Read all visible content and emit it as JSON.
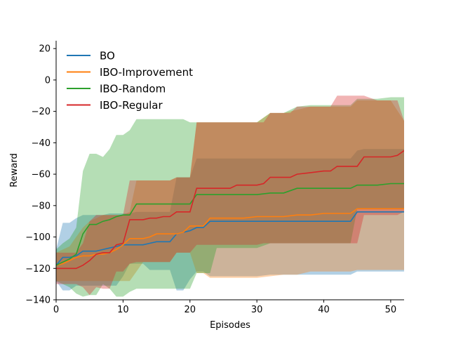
{
  "chart_data": {
    "type": "line",
    "title": "",
    "xlabel": "Episodes",
    "ylabel": "Reward",
    "xlim": [
      0,
      52
    ],
    "ylim": [
      -140,
      25
    ],
    "xticks": [
      0,
      10,
      20,
      30,
      40,
      50
    ],
    "yticks": [
      -140,
      -120,
      -100,
      -80,
      -60,
      -40,
      -20,
      0,
      20
    ],
    "grid": false,
    "legend_position": "top-left",
    "series": [
      {
        "name": "BO",
        "color": "#1f77b4",
        "x": [
          0,
          1,
          2,
          3,
          4,
          5,
          6,
          7,
          8,
          9,
          10,
          11,
          12,
          13,
          14,
          15,
          16,
          17,
          18,
          19,
          20,
          21,
          22,
          23,
          24,
          26,
          28,
          30,
          32,
          34,
          36,
          38,
          40,
          42,
          44,
          45,
          46,
          48,
          50,
          52
        ],
        "mean": [
          -118,
          -113,
          -113,
          -112,
          -109,
          -109,
          -109,
          -108,
          -107,
          -106,
          -105,
          -105,
          -105,
          -105,
          -104,
          -103,
          -103,
          -103,
          -98,
          -97,
          -96,
          -94,
          -94,
          -90,
          -90,
          -90,
          -90,
          -90,
          -90,
          -90,
          -90,
          -90,
          -90,
          -90,
          -90,
          -84,
          -84,
          -84,
          -84,
          -84
        ],
        "upper": [
          -108,
          -91,
          -91,
          -88,
          -86,
          -86,
          -86,
          -86,
          -85,
          -85,
          -85,
          -85,
          -84,
          -84,
          -84,
          -84,
          -84,
          -84,
          -62,
          -62,
          -62,
          -50,
          -50,
          -50,
          -50,
          -50,
          -50,
          -50,
          -50,
          -50,
          -50,
          -50,
          -50,
          -50,
          -50,
          -45,
          -44,
          -44,
          -44,
          -44
        ],
        "lower": [
          -128,
          -134,
          -134,
          -131,
          -131,
          -131,
          -131,
          -131,
          -131,
          -131,
          -125,
          -117,
          -117,
          -117,
          -121,
          -121,
          -121,
          -121,
          -134,
          -134,
          -127,
          -122,
          -122,
          -125,
          -125,
          -125,
          -125,
          -125,
          -124,
          -124,
          -124,
          -124,
          -124,
          -124,
          -124,
          -122,
          -122,
          -122,
          -122,
          -122
        ]
      },
      {
        "name": "IBO-Improvement",
        "color": "#ff7f0e",
        "x": [
          0,
          1,
          2,
          3,
          4,
          5,
          6,
          7,
          8,
          9,
          10,
          11,
          12,
          13,
          14,
          15,
          16,
          17,
          18,
          19,
          20,
          21,
          22,
          23,
          24,
          26,
          28,
          30,
          32,
          34,
          36,
          38,
          40,
          42,
          44,
          45,
          46,
          48,
          50,
          52
        ],
        "mean": [
          -118,
          -117,
          -115,
          -113,
          -112,
          -112,
          -111,
          -111,
          -110,
          -108,
          -105,
          -101,
          -101,
          -101,
          -100,
          -98,
          -98,
          -98,
          -98,
          -97,
          -93,
          -93,
          -93,
          -88,
          -88,
          -88,
          -88,
          -87,
          -87,
          -87,
          -86,
          -86,
          -85,
          -85,
          -85,
          -82,
          -82,
          -82,
          -82,
          -82
        ],
        "upper": [
          -110,
          -108,
          -106,
          -100,
          -94,
          -90,
          -88,
          -86,
          -86,
          -86,
          -86,
          -84,
          -64,
          -64,
          -64,
          -64,
          -64,
          -64,
          -62,
          -62,
          -62,
          -27,
          -27,
          -27,
          -27,
          -27,
          -27,
          -27,
          -21,
          -21,
          -19,
          -17,
          -17,
          -17,
          -17,
          -13,
          -13,
          -13,
          -13,
          -26
        ],
        "lower": [
          -128,
          -128,
          -128,
          -128,
          -128,
          -128,
          -128,
          -128,
          -128,
          -128,
          -128,
          -128,
          -122,
          -116,
          -116,
          -116,
          -116,
          -116,
          -110,
          -110,
          -110,
          -123,
          -123,
          -126,
          -126,
          -126,
          -126,
          -126,
          -125,
          -124,
          -124,
          -122,
          -122,
          -122,
          -122,
          -121,
          -121,
          -121,
          -121,
          -121
        ]
      },
      {
        "name": "IBO-Random",
        "color": "#2ca02c",
        "x": [
          0,
          1,
          2,
          3,
          4,
          5,
          6,
          7,
          8,
          9,
          10,
          11,
          12,
          13,
          14,
          15,
          16,
          17,
          18,
          19,
          20,
          21,
          22,
          23,
          24,
          26,
          28,
          30,
          32,
          34,
          36,
          38,
          40,
          42,
          44,
          45,
          46,
          48,
          50,
          52
        ],
        "mean": [
          -118,
          -116,
          -114,
          -111,
          -98,
          -92,
          -92,
          -90,
          -89,
          -87,
          -86,
          -86,
          -79,
          -79,
          -79,
          -79,
          -79,
          -79,
          -79,
          -79,
          -79,
          -73,
          -73,
          -73,
          -73,
          -73,
          -73,
          -73,
          -72,
          -72,
          -69,
          -69,
          -69,
          -69,
          -69,
          -67,
          -67,
          -67,
          -66,
          -66
        ],
        "upper": [
          -108,
          -104,
          -101,
          -94,
          -58,
          -47,
          -47,
          -49,
          -44,
          -35,
          -35,
          -32,
          -25,
          -25,
          -25,
          -25,
          -25,
          -25,
          -25,
          -25,
          -27,
          -27,
          -27,
          -27,
          -27,
          -27,
          -27,
          -27,
          -21,
          -21,
          -17,
          -16,
          -16,
          -16,
          -16,
          -12,
          -12,
          -12,
          -11,
          -11
        ],
        "lower": [
          -128,
          -130,
          -132,
          -136,
          -138,
          -137,
          -137,
          -130,
          -133,
          -138,
          -138,
          -135,
          -133,
          -133,
          -133,
          -133,
          -133,
          -133,
          -133,
          -133,
          -133,
          -123,
          -123,
          -123,
          -107,
          -107,
          -107,
          -107,
          -104,
          -104,
          -104,
          -104,
          -104,
          -104,
          -104,
          -82,
          -82,
          -82,
          -82,
          -82
        ]
      },
      {
        "name": "IBO-Regular",
        "color": "#d62728",
        "x": [
          0,
          1,
          2,
          3,
          4,
          5,
          6,
          7,
          8,
          9,
          10,
          11,
          12,
          13,
          14,
          15,
          16,
          17,
          18,
          19,
          20,
          21,
          22,
          23,
          24,
          26,
          27,
          28,
          30,
          31,
          32,
          34,
          35,
          36,
          38,
          40,
          41,
          42,
          44,
          45,
          46,
          48,
          50,
          51,
          52
        ],
        "mean": [
          -120,
          -120,
          -120,
          -120,
          -118,
          -115,
          -111,
          -110,
          -110,
          -105,
          -104,
          -89,
          -89,
          -89,
          -88,
          -88,
          -87,
          -87,
          -84,
          -84,
          -84,
          -69,
          -69,
          -69,
          -69,
          -69,
          -67,
          -67,
          -67,
          -66,
          -62,
          -62,
          -62,
          -60,
          -59,
          -58,
          -58,
          -55,
          -55,
          -55,
          -49,
          -49,
          -49,
          -48,
          -45
        ],
        "upper": [
          -110,
          -110,
          -110,
          -110,
          -104,
          -90,
          -86,
          -86,
          -86,
          -86,
          -86,
          -64,
          -64,
          -64,
          -64,
          -64,
          -64,
          -64,
          -62,
          -62,
          -62,
          -27,
          -27,
          -27,
          -27,
          -27,
          -27,
          -27,
          -27,
          -27,
          -21,
          -21,
          -21,
          -17,
          -17,
          -17,
          -17,
          -10,
          -10,
          -10,
          -10,
          -13,
          -13,
          -13,
          -26
        ],
        "lower": [
          -130,
          -130,
          -130,
          -130,
          -132,
          -137,
          -132,
          -133,
          -133,
          -122,
          -122,
          -117,
          -116,
          -116,
          -116,
          -116,
          -116,
          -116,
          -110,
          -110,
          -110,
          -105,
          -105,
          -105,
          -105,
          -105,
          -105,
          -105,
          -105,
          -104,
          -104,
          -104,
          -104,
          -104,
          -104,
          -104,
          -104,
          -104,
          -104,
          -104,
          -86,
          -86,
          -86,
          -86,
          -84
        ]
      }
    ]
  }
}
